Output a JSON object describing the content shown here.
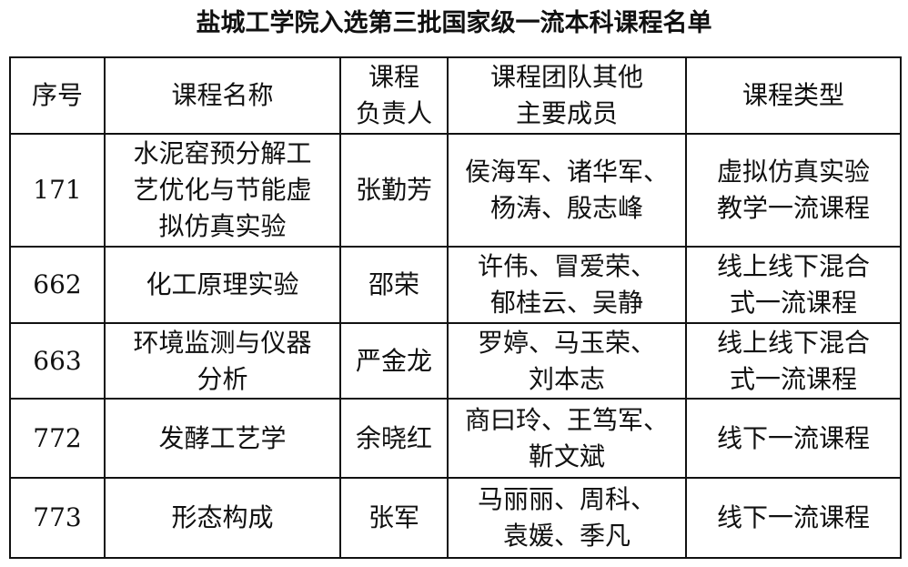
{
  "title": "盐城工学院入选第三批国家级一流本科课程名单",
  "headers": [
    [
      "序号"
    ],
    [
      "课程名称"
    ],
    [
      "课程",
      "负责人"
    ],
    [
      "课程团队其他",
      "主要成员"
    ],
    [
      "课程类型"
    ]
  ],
  "rows": [
    [
      [
        "171"
      ],
      [
        "水泥窑预分解工",
        "艺优化与节能虚",
        "拟仿真实验"
      ],
      [
        "张勤芳"
      ],
      [
        "侯海军、诸华军、",
        "杨涛、殷志峰"
      ],
      [
        "虚拟仿真实验",
        "教学一流课程"
      ]
    ],
    [
      [
        "662"
      ],
      [
        "化工原理实验"
      ],
      [
        "邵荣"
      ],
      [
        "许伟、冒爱荣、",
        "郁桂云、吴静"
      ],
      [
        "线上线下混合",
        "式一流课程"
      ]
    ],
    [
      [
        "663"
      ],
      [
        "环境监测与仪器",
        "分析"
      ],
      [
        "严金龙"
      ],
      [
        "罗婷、马玉荣、",
        "刘本志"
      ],
      [
        "线上线下混合",
        "式一流课程"
      ]
    ],
    [
      [
        "772"
      ],
      [
        "发酵工艺学"
      ],
      [
        "余晓红"
      ],
      [
        "商曰玲、王笃军、",
        "靳文斌"
      ],
      [
        "线下一流课程"
      ]
    ],
    [
      [
        "773"
      ],
      [
        "形态构成"
      ],
      [
        "张军"
      ],
      [
        "马丽丽、周科、",
        "袁媛、季凡"
      ],
      [
        "线下一流课程"
      ]
    ]
  ]
}
